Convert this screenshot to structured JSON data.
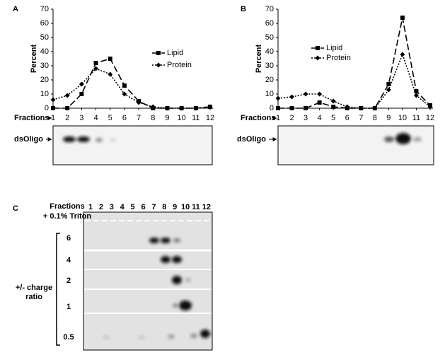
{
  "chart_data": [
    {
      "type": "line",
      "panel": "A",
      "x": [
        1,
        2,
        3,
        4,
        5,
        6,
        7,
        8,
        9,
        10,
        11,
        12
      ],
      "xlabel": "Fractions",
      "ylabel": "Percent",
      "xlim": [
        1,
        12
      ],
      "xticks": [
        1,
        2,
        3,
        4,
        5,
        6,
        7,
        8,
        9,
        10,
        11,
        12
      ],
      "ylim": [
        0,
        70
      ],
      "yticks": [
        0,
        10,
        20,
        30,
        40,
        50,
        60,
        70
      ],
      "series": [
        {
          "name": "Lipid",
          "color": "#000000",
          "marker": "square",
          "dash": "dashed",
          "values": [
            0,
            0,
            10,
            32,
            35,
            16,
            5,
            0,
            0,
            0,
            0,
            1
          ]
        },
        {
          "name": "Protein",
          "color": "#000000",
          "marker": "diamond",
          "dash": "dotted",
          "values": [
            6,
            9,
            17,
            28,
            24,
            10,
            4,
            1,
            0,
            0,
            0,
            1
          ]
        }
      ],
      "gel_label": "dsOligo"
    },
    {
      "type": "line",
      "panel": "B",
      "x": [
        1,
        2,
        3,
        4,
        5,
        6,
        7,
        8,
        9,
        10,
        11,
        12
      ],
      "xlabel": "Fractions",
      "ylabel": "Percent",
      "xlim": [
        1,
        12
      ],
      "xticks": [
        1,
        2,
        3,
        4,
        5,
        6,
        7,
        8,
        9,
        10,
        11,
        12
      ],
      "ylim": [
        0,
        70
      ],
      "yticks": [
        0,
        10,
        20,
        30,
        40,
        50,
        60,
        70
      ],
      "series": [
        {
          "name": "Lipid",
          "color": "#000000",
          "marker": "square",
          "dash": "dashed",
          "values": [
            0,
            0,
            0,
            4,
            1,
            0,
            0,
            0,
            17,
            64,
            12,
            2
          ]
        },
        {
          "name": "Protein",
          "color": "#000000",
          "marker": "diamond",
          "dash": "dotted",
          "values": [
            7,
            8,
            10,
            10,
            5,
            1,
            0,
            0,
            13,
            38,
            9,
            1
          ]
        }
      ],
      "gel_label": "dsOligo"
    }
  ],
  "panel_c": {
    "panel": "C",
    "label_top": "Fractions",
    "label_bottom": "+ 0.1% Triton",
    "lanes": [
      "1",
      "2",
      "3",
      "4",
      "5",
      "6",
      "7",
      "8",
      "9",
      "10",
      "11",
      "12"
    ],
    "ratios": [
      "6",
      "4",
      "2",
      "1",
      "0.5"
    ],
    "ratio_label_1": "+/- charge",
    "ratio_label_2": "ratio"
  }
}
